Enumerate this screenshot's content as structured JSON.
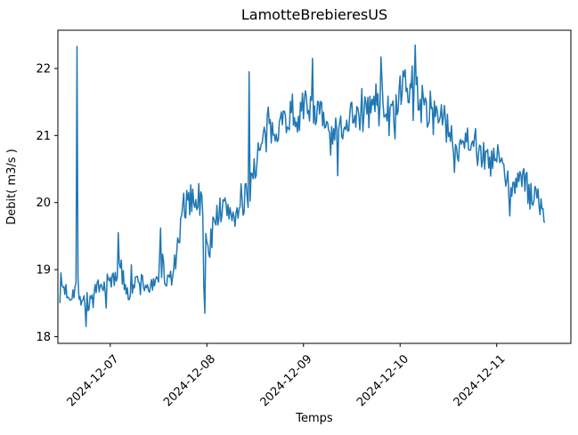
{
  "figure": {
    "background": "#ffffff",
    "text_color": "#000000"
  },
  "chart_data": {
    "type": "line",
    "title": "LamotteBrebieresUS",
    "xlabel": "Temps",
    "ylabel": "Debit( m3/s )",
    "grid": false,
    "legend": "none",
    "line_color": "#1f77b4",
    "line_width": 1.5,
    "yticks": [
      18,
      19,
      20,
      21,
      22
    ],
    "ylim": [
      17.9,
      22.57
    ],
    "xticks": [
      {
        "label": "2024-12-07",
        "date": "2024-12-07T00:00"
      },
      {
        "label": "2024-12-08",
        "date": "2024-12-08T00:00"
      },
      {
        "label": "2024-12-09",
        "date": "2024-12-09T00:00"
      },
      {
        "label": "2024-12-10",
        "date": "2024-12-10T00:00"
      },
      {
        "label": "2024-12-11",
        "date": "2024-12-11T00:00"
      }
    ],
    "xlim": [
      "2024-12-06T11:00",
      "2024-12-11T18:25"
    ],
    "xtick_rotation_deg": 45,
    "series": [
      {
        "name": "Debit",
        "start": "2024-12-06T11:30",
        "end": "2024-12-11T12:00",
        "sample_interval_minutes": 15,
        "observed_min": 18.15,
        "observed_max": 22.35,
        "noise_seed": 7,
        "outlier_probability": 0.08,
        "outlier_gain": 1.7,
        "trend_keyframes": [
          [
            "2024-12-06T11:30",
            18.8,
            0.18
          ],
          [
            "2024-12-06T14:00",
            18.62,
            0.15
          ],
          [
            "2024-12-06T15:30",
            18.75,
            0.15
          ],
          [
            "2024-12-06T18:00",
            18.48,
            0.2
          ],
          [
            "2024-12-06T21:00",
            18.65,
            0.18
          ],
          [
            "2024-12-07T00:00",
            18.8,
            0.2
          ],
          [
            "2024-12-07T02:00",
            19.05,
            0.25
          ],
          [
            "2024-12-07T04:00",
            18.75,
            0.18
          ],
          [
            "2024-12-07T08:00",
            18.8,
            0.2
          ],
          [
            "2024-12-07T11:00",
            18.7,
            0.18
          ],
          [
            "2024-12-07T12:30",
            19.15,
            0.25
          ],
          [
            "2024-12-07T14:00",
            18.8,
            0.2
          ],
          [
            "2024-12-07T15:30",
            18.9,
            0.15
          ],
          [
            "2024-12-07T17:00",
            19.4,
            0.2
          ],
          [
            "2024-12-07T18:30",
            19.95,
            0.25
          ],
          [
            "2024-12-07T21:00",
            20.1,
            0.22
          ],
          [
            "2024-12-07T23:00",
            19.9,
            0.28
          ],
          [
            "2024-12-08T00:30",
            19.15,
            0.15
          ],
          [
            "2024-12-08T02:00",
            19.85,
            0.22
          ],
          [
            "2024-12-08T05:00",
            19.9,
            0.25
          ],
          [
            "2024-12-08T08:00",
            19.8,
            0.25
          ],
          [
            "2024-12-08T10:00",
            20.1,
            0.25
          ],
          [
            "2024-12-08T12:00",
            20.6,
            0.3
          ],
          [
            "2024-12-08T15:00",
            21.0,
            0.3
          ],
          [
            "2024-12-08T18:00",
            21.2,
            0.25
          ],
          [
            "2024-12-08T21:00",
            21.3,
            0.25
          ],
          [
            "2024-12-09T00:00",
            21.35,
            0.3
          ],
          [
            "2024-12-09T02:00",
            21.55,
            0.33
          ],
          [
            "2024-12-09T05:00",
            21.2,
            0.25
          ],
          [
            "2024-12-09T07:00",
            20.9,
            0.28
          ],
          [
            "2024-12-09T09:00",
            21.1,
            0.25
          ],
          [
            "2024-12-09T12:00",
            21.35,
            0.25
          ],
          [
            "2024-12-09T15:00",
            21.3,
            0.3
          ],
          [
            "2024-12-09T18:00",
            21.5,
            0.3
          ],
          [
            "2024-12-09T19:30",
            21.65,
            0.33
          ],
          [
            "2024-12-09T21:30",
            21.2,
            0.3
          ],
          [
            "2024-12-10T00:00",
            21.6,
            0.3
          ],
          [
            "2024-12-10T03:45",
            21.8,
            0.33
          ],
          [
            "2024-12-10T06:00",
            21.35,
            0.3
          ],
          [
            "2024-12-10T09:00",
            21.4,
            0.25
          ],
          [
            "2024-12-10T12:00",
            21.1,
            0.25
          ],
          [
            "2024-12-10T13:30",
            20.75,
            0.25
          ],
          [
            "2024-12-10T16:00",
            21.0,
            0.25
          ],
          [
            "2024-12-10T19:00",
            20.9,
            0.25
          ],
          [
            "2024-12-10T22:00",
            20.55,
            0.25
          ],
          [
            "2024-12-11T00:30",
            20.7,
            0.2
          ],
          [
            "2024-12-11T03:00",
            20.2,
            0.25
          ],
          [
            "2024-12-11T06:00",
            20.4,
            0.2
          ],
          [
            "2024-12-11T08:00",
            20.15,
            0.25
          ],
          [
            "2024-12-11T10:00",
            20.1,
            0.2
          ],
          [
            "2024-12-11T12:00",
            19.75,
            0.12
          ]
        ],
        "spikes": [
          [
            "2024-12-06T15:45",
            22.33
          ],
          [
            "2024-12-06T18:00",
            18.15
          ],
          [
            "2024-12-07T02:00",
            19.55
          ],
          [
            "2024-12-07T12:30",
            19.62
          ],
          [
            "2024-12-07T23:15",
            18.75
          ],
          [
            "2024-12-07T23:30",
            18.35
          ],
          [
            "2024-12-08T10:30",
            21.95
          ],
          [
            "2024-12-09T02:15",
            22.15
          ],
          [
            "2024-12-09T08:30",
            20.4
          ],
          [
            "2024-12-09T19:15",
            22.17
          ],
          [
            "2024-12-10T03:45",
            22.35
          ],
          [
            "2024-12-10T13:30",
            20.45
          ],
          [
            "2024-12-11T03:15",
            19.8
          ]
        ]
      }
    ]
  }
}
